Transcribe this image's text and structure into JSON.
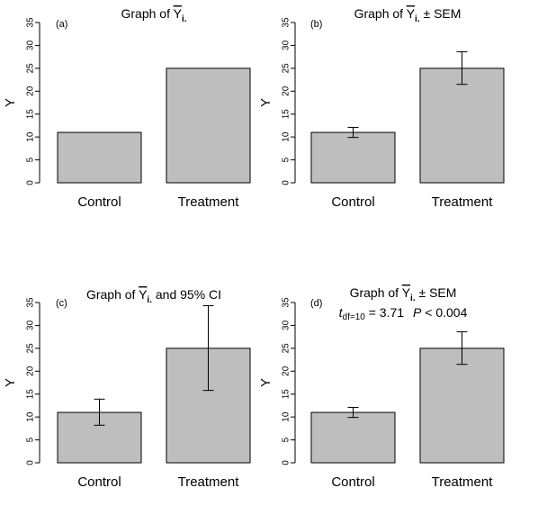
{
  "chart_data": [
    {
      "type": "bar",
      "panel_label": "(a)",
      "title": {
        "prefix": "Graph of ",
        "ybar": "Y",
        "sub": "i.",
        "suffix": ""
      },
      "categories": [
        "Control",
        "Treatment"
      ],
      "values": [
        11,
        25
      ],
      "error_bars": null,
      "ylabel": "Y",
      "ylim": [
        0,
        35
      ],
      "yticks": [
        0,
        5,
        10,
        15,
        20,
        25,
        30,
        35
      ],
      "bar_color": "#bebebe"
    },
    {
      "type": "bar",
      "panel_label": "(b)",
      "title": {
        "prefix": "Graph of ",
        "ybar": "Y",
        "sub": "i.",
        "suffix": " ± SEM"
      },
      "categories": [
        "Control",
        "Treatment"
      ],
      "values": [
        11,
        25
      ],
      "error_bars": [
        [
          9.9,
          12.1
        ],
        [
          21.5,
          28.6
        ]
      ],
      "error_type": "SEM",
      "ylabel": "Y",
      "ylim": [
        0,
        35
      ],
      "yticks": [
        0,
        5,
        10,
        15,
        20,
        25,
        30,
        35
      ],
      "bar_color": "#bebebe"
    },
    {
      "type": "bar",
      "panel_label": "(c)",
      "title": {
        "prefix": "Graph of ",
        "ybar": "Y",
        "sub": "i.",
        "suffix": " and 95% CI"
      },
      "categories": [
        "Control",
        "Treatment"
      ],
      "values": [
        11,
        25
      ],
      "error_bars": [
        [
          8.2,
          13.9
        ],
        [
          15.8,
          34.3
        ]
      ],
      "error_type": "95% CI",
      "ylabel": "Y",
      "ylim": [
        0,
        35
      ],
      "yticks": [
        0,
        5,
        10,
        15,
        20,
        25,
        30,
        35
      ],
      "bar_color": "#bebebe"
    },
    {
      "type": "bar",
      "panel_label": "(d)",
      "title": {
        "prefix": "Graph of ",
        "ybar": "Y",
        "sub": "i.",
        "suffix": " ± SEM"
      },
      "annotation": {
        "t_sym": "t",
        "t_sub": "df=10",
        "t_val": " = 3.71",
        "p_sym": "P",
        "p_val": " < 0.004"
      },
      "categories": [
        "Control",
        "Treatment"
      ],
      "values": [
        11,
        25
      ],
      "error_bars": [
        [
          9.9,
          12.1
        ],
        [
          21.5,
          28.6
        ]
      ],
      "error_type": "SEM",
      "ylabel": "Y",
      "ylim": [
        0,
        35
      ],
      "yticks": [
        0,
        5,
        10,
        15,
        20,
        25,
        30,
        35
      ],
      "bar_color": "#bebebe"
    }
  ]
}
